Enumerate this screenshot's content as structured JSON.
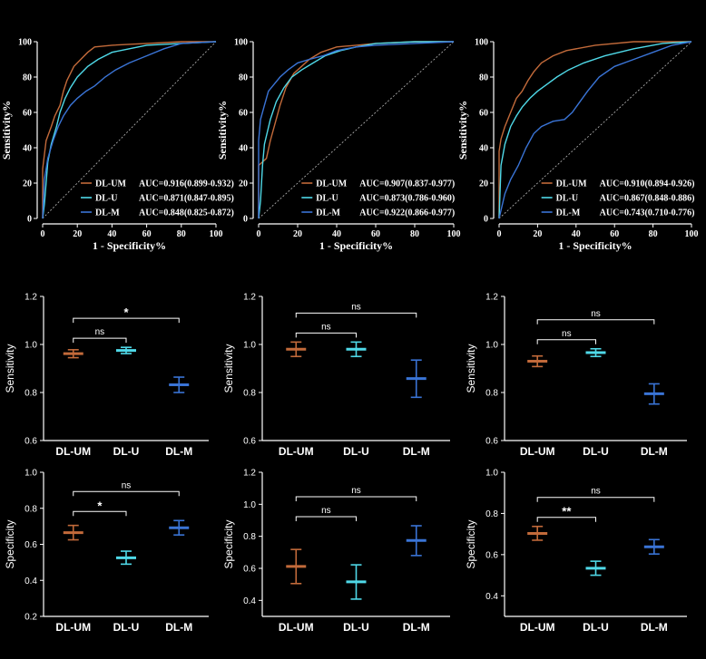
{
  "colors": {
    "background": "#000000",
    "um": "#c26a3a",
    "u": "#4fd9e8",
    "m": "#3a74d6",
    "axis": "#ffffff",
    "diag": "#bbbbbb"
  },
  "chart_data": [
    {
      "type": "line",
      "panel": "roc-1",
      "xlabel": "1 - Specificity%",
      "ylabel": "Sensitivity%",
      "xlim": [
        0,
        100
      ],
      "ylim": [
        0,
        100
      ],
      "xticks": [
        "0",
        "20",
        "40",
        "60",
        "80",
        "100"
      ],
      "yticks": [
        "0",
        "20",
        "40",
        "60",
        "80",
        "100"
      ],
      "series": [
        {
          "name": "DL-UM",
          "legend_name": "DL-UM",
          "auc": "AUC=0.916(0.899-0.932)",
          "color": "#c26a3a",
          "points": [
            [
              0,
              0
            ],
            [
              0,
              28
            ],
            [
              1,
              36
            ],
            [
              2,
              44
            ],
            [
              5,
              52
            ],
            [
              7,
              58
            ],
            [
              10,
              64
            ],
            [
              12,
              72
            ],
            [
              14,
              78
            ],
            [
              16,
              82
            ],
            [
              18,
              86
            ],
            [
              22,
              90
            ],
            [
              26,
              94
            ],
            [
              30,
              97
            ],
            [
              40,
              98
            ],
            [
              60,
              99
            ],
            [
              80,
              100
            ],
            [
              100,
              100
            ]
          ]
        },
        {
          "name": "DL-U",
          "legend_name": "DL-U",
          "auc": "AUC=0.871(0.847-0.895)",
          "color": "#4fd9e8",
          "points": [
            [
              0,
              0
            ],
            [
              1,
              8
            ],
            [
              2,
              20
            ],
            [
              3,
              32
            ],
            [
              5,
              42
            ],
            [
              8,
              52
            ],
            [
              10,
              60
            ],
            [
              13,
              68
            ],
            [
              16,
              74
            ],
            [
              20,
              80
            ],
            [
              26,
              86
            ],
            [
              32,
              90
            ],
            [
              40,
              94
            ],
            [
              50,
              96
            ],
            [
              60,
              98
            ],
            [
              80,
              99
            ],
            [
              100,
              100
            ]
          ]
        },
        {
          "name": "DL-M",
          "legend_name": "DL-M",
          "auc": "AUC=0.848(0.825-0.872)",
          "color": "#3a74d6",
          "points": [
            [
              0,
              0
            ],
            [
              1,
              22
            ],
            [
              3,
              34
            ],
            [
              6,
              44
            ],
            [
              9,
              52
            ],
            [
              12,
              58
            ],
            [
              16,
              64
            ],
            [
              20,
              68
            ],
            [
              25,
              72
            ],
            [
              30,
              75
            ],
            [
              36,
              80
            ],
            [
              42,
              84
            ],
            [
              50,
              88
            ],
            [
              60,
              92
            ],
            [
              70,
              96
            ],
            [
              80,
              99
            ],
            [
              100,
              100
            ]
          ]
        }
      ]
    },
    {
      "type": "line",
      "panel": "roc-2",
      "xlabel": "1 - Specificity%",
      "ylabel": "Sensitivity%",
      "xlim": [
        0,
        100
      ],
      "ylim": [
        0,
        100
      ],
      "xticks": [
        "0",
        "20",
        "40",
        "60",
        "80",
        "100"
      ],
      "yticks": [
        "0",
        "20",
        "40",
        "60",
        "80",
        "100"
      ],
      "series": [
        {
          "name": "DL-UM",
          "legend_name": "DL-UM",
          "auc": "AUC=0.907(0.837-0.977)",
          "color": "#c26a3a",
          "points": [
            [
              0,
              0
            ],
            [
              0,
              30
            ],
            [
              4,
              34
            ],
            [
              6,
              44
            ],
            [
              8,
              52
            ],
            [
              11,
              64
            ],
            [
              14,
              74
            ],
            [
              18,
              82
            ],
            [
              22,
              86
            ],
            [
              26,
              90
            ],
            [
              32,
              94
            ],
            [
              40,
              97
            ],
            [
              50,
              98
            ],
            [
              60,
              99
            ],
            [
              80,
              100
            ],
            [
              100,
              100
            ]
          ]
        },
        {
          "name": "DL-U",
          "legend_name": "DL-U",
          "auc": "AUC=0.873(0.786-0.960)",
          "color": "#4fd9e8",
          "points": [
            [
              0,
              0
            ],
            [
              1,
              10
            ],
            [
              2,
              30
            ],
            [
              3,
              42
            ],
            [
              6,
              56
            ],
            [
              9,
              66
            ],
            [
              13,
              74
            ],
            [
              17,
              80
            ],
            [
              22,
              84
            ],
            [
              28,
              88
            ],
            [
              34,
              92
            ],
            [
              42,
              95
            ],
            [
              50,
              97
            ],
            [
              60,
              99
            ],
            [
              80,
              100
            ],
            [
              100,
              100
            ]
          ]
        },
        {
          "name": "DL-M",
          "legend_name": "DL-M",
          "auc": "AUC=0.922(0.866-0.977)",
          "color": "#3a74d6",
          "points": [
            [
              0,
              0
            ],
            [
              0,
              44
            ],
            [
              1,
              56
            ],
            [
              3,
              64
            ],
            [
              5,
              72
            ],
            [
              8,
              76
            ],
            [
              11,
              80
            ],
            [
              15,
              84
            ],
            [
              20,
              88
            ],
            [
              26,
              90
            ],
            [
              33,
              92
            ],
            [
              40,
              95
            ],
            [
              50,
              97
            ],
            [
              60,
              98
            ],
            [
              80,
              99
            ],
            [
              100,
              100
            ]
          ]
        }
      ]
    },
    {
      "type": "line",
      "panel": "roc-3",
      "xlabel": "1 - Specificity%",
      "ylabel": "Sensitivity%",
      "xlim": [
        0,
        100
      ],
      "ylim": [
        0,
        100
      ],
      "xticks": [
        "0",
        "20",
        "40",
        "60",
        "80",
        "100"
      ],
      "yticks": [
        "0",
        "20",
        "40",
        "60",
        "80",
        "100"
      ],
      "series": [
        {
          "name": "DL-UM",
          "legend_name": "DL-UM",
          "auc": "AUC=0.910(0.894-0.926)",
          "color": "#c26a3a",
          "points": [
            [
              0,
              0
            ],
            [
              0,
              38
            ],
            [
              1,
              45
            ],
            [
              3,
              52
            ],
            [
              6,
              60
            ],
            [
              9,
              68
            ],
            [
              12,
              72
            ],
            [
              15,
              78
            ],
            [
              18,
              83
            ],
            [
              22,
              88
            ],
            [
              28,
              92
            ],
            [
              35,
              95
            ],
            [
              50,
              98
            ],
            [
              70,
              100
            ],
            [
              100,
              100
            ]
          ]
        },
        {
          "name": "DL-U",
          "legend_name": "DL-U",
          "auc": "AUC=0.867(0.848-0.886)",
          "color": "#4fd9e8",
          "points": [
            [
              0,
              0
            ],
            [
              1,
              30
            ],
            [
              3,
              42
            ],
            [
              6,
              52
            ],
            [
              9,
              58
            ],
            [
              12,
              63
            ],
            [
              16,
              68
            ],
            [
              20,
              72
            ],
            [
              25,
              76
            ],
            [
              30,
              80
            ],
            [
              36,
              84
            ],
            [
              44,
              88
            ],
            [
              55,
              92
            ],
            [
              70,
              96
            ],
            [
              85,
              99
            ],
            [
              100,
              100
            ]
          ]
        },
        {
          "name": "DL-M",
          "legend_name": "DL-M",
          "auc": "AUC=0.743(0.710-0.776)",
          "color": "#3a74d6",
          "points": [
            [
              0,
              0
            ],
            [
              3,
              14
            ],
            [
              6,
              22
            ],
            [
              10,
              30
            ],
            [
              14,
              40
            ],
            [
              18,
              48
            ],
            [
              22,
              52
            ],
            [
              28,
              55
            ],
            [
              34,
              56
            ],
            [
              38,
              60
            ],
            [
              42,
              66
            ],
            [
              46,
              72
            ],
            [
              52,
              80
            ],
            [
              60,
              86
            ],
            [
              70,
              90
            ],
            [
              80,
              94
            ],
            [
              90,
              98
            ],
            [
              100,
              100
            ]
          ]
        }
      ]
    },
    {
      "type": "bar",
      "panel": "sens-1",
      "ylabel": "Sensitivity",
      "ylim": [
        0.6,
        1.2
      ],
      "yticks": [
        "0.6",
        "0.8",
        "1.0",
        "1.2"
      ],
      "categories": [
        "DL-UM",
        "DL-U",
        "DL-M"
      ],
      "series": [
        {
          "name": "DL-UM",
          "mean": 0.962,
          "low": 0.945,
          "high": 0.978
        },
        {
          "name": "DL-U",
          "mean": 0.975,
          "low": 0.962,
          "high": 0.988
        },
        {
          "name": "DL-M",
          "mean": 0.832,
          "low": 0.8,
          "high": 0.864
        }
      ],
      "annotations": [
        {
          "from": 0,
          "to": 1,
          "label": "ns",
          "level": 1
        },
        {
          "from": 0,
          "to": 2,
          "label": "*",
          "level": 2
        }
      ]
    },
    {
      "type": "bar",
      "panel": "sens-2",
      "ylabel": "Sensitivity",
      "ylim": [
        0.6,
        1.2
      ],
      "yticks": [
        "0.6",
        "0.8",
        "1.0",
        "1.2"
      ],
      "categories": [
        "DL-UM",
        "DL-U",
        "DL-M"
      ],
      "series": [
        {
          "name": "DL-UM",
          "mean": 0.98,
          "low": 0.95,
          "high": 1.01
        },
        {
          "name": "DL-U",
          "mean": 0.98,
          "low": 0.95,
          "high": 1.01
        },
        {
          "name": "DL-M",
          "mean": 0.858,
          "low": 0.78,
          "high": 0.935
        }
      ],
      "annotations": [
        {
          "from": 0,
          "to": 1,
          "label": "ns",
          "level": 1
        },
        {
          "from": 0,
          "to": 2,
          "label": "ns",
          "level": 2
        }
      ]
    },
    {
      "type": "bar",
      "panel": "sens-3",
      "ylabel": "Sensitivity",
      "ylim": [
        0.6,
        1.2
      ],
      "yticks": [
        "0.6",
        "0.8",
        "1.0",
        "1.2"
      ],
      "categories": [
        "DL-UM",
        "DL-U",
        "DL-M"
      ],
      "series": [
        {
          "name": "DL-UM",
          "mean": 0.93,
          "low": 0.908,
          "high": 0.952
        },
        {
          "name": "DL-U",
          "mean": 0.966,
          "low": 0.95,
          "high": 0.982
        },
        {
          "name": "DL-M",
          "mean": 0.795,
          "low": 0.752,
          "high": 0.836
        }
      ],
      "annotations": [
        {
          "from": 0,
          "to": 1,
          "label": "ns",
          "level": 1
        },
        {
          "from": 0,
          "to": 2,
          "label": "ns",
          "level": 2
        }
      ]
    },
    {
      "type": "bar",
      "panel": "spec-1",
      "ylabel": "Specificity",
      "ylim": [
        0.2,
        1.0
      ],
      "yticks": [
        "0.2",
        "0.4",
        "0.6",
        "0.8",
        "1.0"
      ],
      "categories": [
        "DL-UM",
        "DL-U",
        "DL-M"
      ],
      "series": [
        {
          "name": "DL-UM",
          "mean": 0.665,
          "low": 0.625,
          "high": 0.705
        },
        {
          "name": "DL-U",
          "mean": 0.525,
          "low": 0.49,
          "high": 0.562
        },
        {
          "name": "DL-M",
          "mean": 0.692,
          "low": 0.652,
          "high": 0.732
        }
      ],
      "annotations": [
        {
          "from": 0,
          "to": 1,
          "label": "*",
          "level": 1
        },
        {
          "from": 0,
          "to": 2,
          "label": "ns",
          "level": 2
        }
      ]
    },
    {
      "type": "bar",
      "panel": "spec-2",
      "ylabel": "Specificity",
      "ylim": [
        0.3,
        1.2
      ],
      "yticks": [
        "0.4",
        "0.6",
        "0.8",
        "1.0",
        "1.2"
      ],
      "categories": [
        "DL-UM",
        "DL-U",
        "DL-M"
      ],
      "series": [
        {
          "name": "DL-UM",
          "mean": 0.612,
          "low": 0.505,
          "high": 0.718
        },
        {
          "name": "DL-U",
          "mean": 0.516,
          "low": 0.408,
          "high": 0.622
        },
        {
          "name": "DL-M",
          "mean": 0.774,
          "low": 0.68,
          "high": 0.866
        }
      ],
      "annotations": [
        {
          "from": 0,
          "to": 1,
          "label": "ns",
          "level": 1
        },
        {
          "from": 0,
          "to": 2,
          "label": "ns",
          "level": 2
        }
      ]
    },
    {
      "type": "bar",
      "panel": "spec-3",
      "ylabel": "Specificity",
      "ylim": [
        0.3,
        1.0
      ],
      "yticks": [
        "0.4",
        "0.6",
        "0.8",
        "1.0"
      ],
      "categories": [
        "DL-UM",
        "DL-U",
        "DL-M"
      ],
      "series": [
        {
          "name": "DL-UM",
          "mean": 0.703,
          "low": 0.67,
          "high": 0.737
        },
        {
          "name": "DL-U",
          "mean": 0.534,
          "low": 0.5,
          "high": 0.568
        },
        {
          "name": "DL-M",
          "mean": 0.638,
          "low": 0.603,
          "high": 0.673
        }
      ],
      "annotations": [
        {
          "from": 0,
          "to": 1,
          "label": "**",
          "level": 1
        },
        {
          "from": 0,
          "to": 2,
          "label": "ns",
          "level": 2
        }
      ]
    }
  ]
}
